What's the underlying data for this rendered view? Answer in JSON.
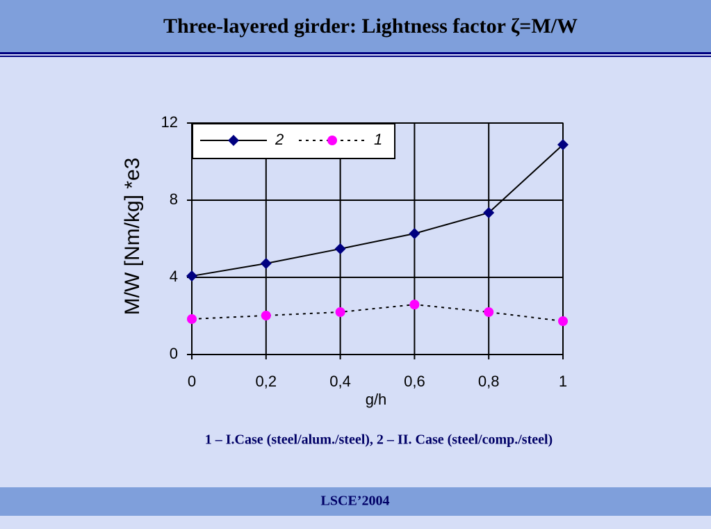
{
  "header": {
    "title": "Three-layered girder: Lightness factor ζ=M/W"
  },
  "chart_data": {
    "type": "line",
    "x_label": "g/h",
    "y_label": "M/W [Nm/kg] *e3",
    "x": [
      0,
      0.2,
      0.4,
      0.6,
      0.8,
      1
    ],
    "series": [
      {
        "name": "2",
        "color": "#000080",
        "line_color": "#000000",
        "line_style": "solid",
        "marker": "diamond",
        "values": [
          4.07,
          4.72,
          5.48,
          6.27,
          7.35,
          10.88
        ]
      },
      {
        "name": "1",
        "color": "#ff00ff",
        "line_color": "#000000",
        "line_style": "dotted",
        "marker": "circle",
        "values": [
          1.84,
          2.02,
          2.2,
          2.59,
          2.2,
          1.73
        ]
      }
    ],
    "xlim": [
      0,
      1
    ],
    "xticks": [
      0,
      {
        "value": 0.2,
        "label": "0,2"
      },
      {
        "value": 0.4,
        "label": "0,4"
      },
      {
        "value": 0.6,
        "label": "0,6"
      },
      {
        "value": 0.8,
        "label": "0,8"
      },
      1
    ],
    "ylim": [
      0,
      12
    ],
    "yticks": [
      0,
      4,
      8,
      12
    ],
    "grid": true,
    "legend": "upper left"
  },
  "caption": "1 – I.Case (steel/alum./steel), 2 – II. Case (steel/comp./steel)",
  "footer": "LSCE’2004"
}
